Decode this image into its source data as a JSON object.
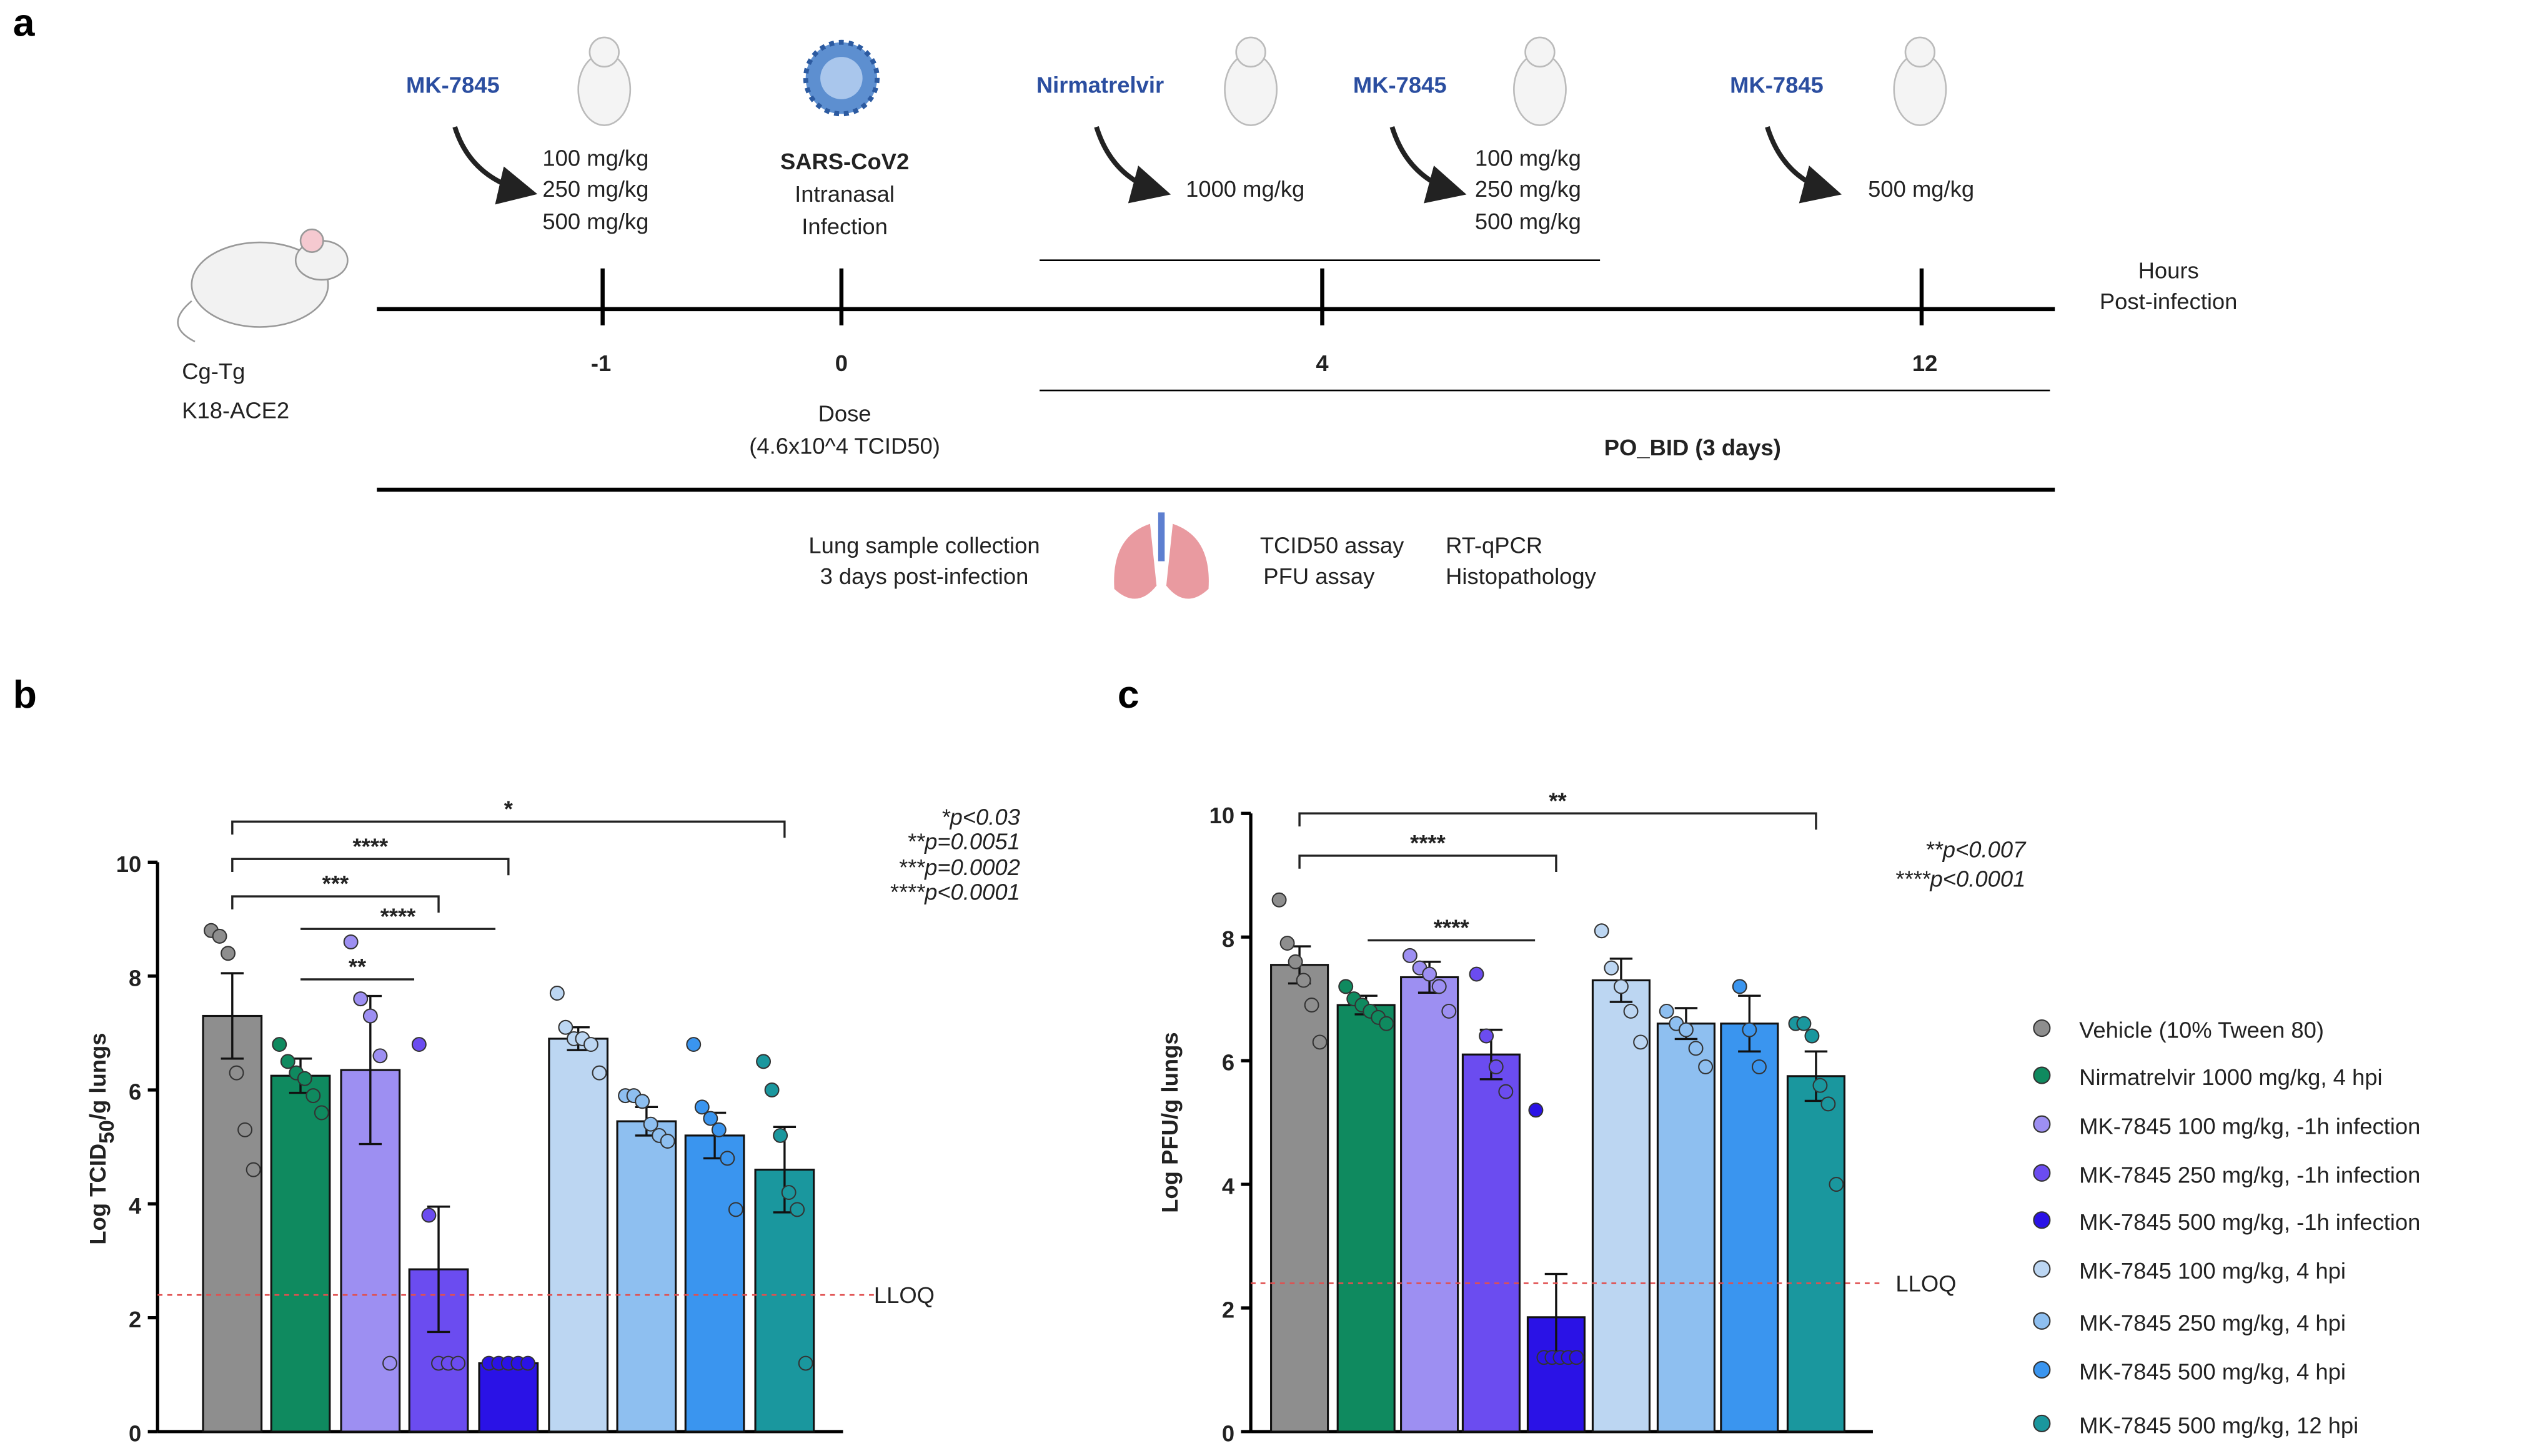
{
  "panels": {
    "a": "a",
    "b": "b",
    "c": "c"
  },
  "schematic": {
    "mouse_label": [
      "Cg-Tg",
      "K18-ACE2"
    ],
    "step1": {
      "drug": "MK-7845",
      "doses": [
        "100 mg/kg",
        "250 mg/kg",
        "500 mg/kg"
      ]
    },
    "infection": {
      "title": "SARS-CoV2",
      "lines": [
        "Intranasal",
        "Infection"
      ]
    },
    "step2": {
      "drug": "Nirmatrelvir",
      "dose": "1000 mg/kg"
    },
    "step3": {
      "drug": "MK-7845",
      "doses": [
        "100 mg/kg",
        "250 mg/kg",
        "500 mg/kg"
      ]
    },
    "step4": {
      "drug": "MK-7845",
      "dose": "500 mg/kg"
    },
    "axis_label": [
      "Hours",
      "Post-infection"
    ],
    "timepoints": [
      "-1",
      "0",
      "4",
      "12"
    ],
    "dose": [
      "Dose",
      "(4.6x10^4 TCID50)"
    ],
    "regimen": "PO_BID (3 days)",
    "collection": [
      "Lung sample collection",
      "3 days post-infection"
    ],
    "assays1": [
      "TCID50 assay",
      "PFU assay"
    ],
    "assays2": [
      "RT-qPCR",
      "Histopathology"
    ]
  },
  "legend": {
    "items": [
      {
        "name": "Vehicle (10% Tween 80)",
        "color": "#8e8e8e"
      },
      {
        "name": "Nirmatrelvir 1000 mg/kg, 4 hpi",
        "color": "#0f8a5f"
      },
      {
        "name": "MK-7845 100 mg/kg, -1h infection",
        "color": "#9d8ff2"
      },
      {
        "name": "MK-7845 250 mg/kg, -1h infection",
        "color": "#6b4cf0"
      },
      {
        "name": "MK-7845 500 mg/kg, -1h infection",
        "color": "#2a12e6"
      },
      {
        "name": "MK-7845 100 mg/kg, 4 hpi",
        "color": "#bcd6f2"
      },
      {
        "name": "MK-7845 250 mg/kg, 4 hpi",
        "color": "#8ebff0"
      },
      {
        "name": "MK-7845 500 mg/kg, 4 hpi",
        "color": "#3a95ef"
      },
      {
        "name": "MK-7845 500 mg/kg, 12 hpi",
        "color": "#1a979e"
      }
    ]
  },
  "chart_data": [
    {
      "type": "bar",
      "ylabel": {
        "main": "Log TCID",
        "sub": "50",
        "rest": "/g lungs"
      },
      "ylim": [
        0,
        10
      ],
      "yticks": [
        0,
        2,
        4,
        6,
        8,
        10
      ],
      "values": [
        7.3,
        6.25,
        6.35,
        2.85,
        1.2,
        6.9,
        5.45,
        5.2,
        4.6
      ],
      "errors": [
        0.75,
        0.3,
        1.3,
        1.1,
        0,
        0.2,
        0.25,
        0.4,
        0.75
      ],
      "points": [
        [
          8.8,
          8.7,
          8.4,
          6.3,
          5.3,
          4.6
        ],
        [
          6.8,
          6.5,
          6.3,
          6.2,
          5.9,
          5.6
        ],
        [
          8.6,
          7.6,
          7.3,
          6.6,
          1.2
        ],
        [
          6.8,
          3.8,
          1.2,
          1.2,
          1.2
        ],
        [
          1.2,
          1.2,
          1.2,
          1.2,
          1.2
        ],
        [
          7.7,
          7.1,
          6.9,
          6.9,
          6.8,
          6.3
        ],
        [
          5.9,
          5.9,
          5.8,
          5.4,
          5.2,
          5.1
        ],
        [
          6.8,
          5.7,
          5.5,
          5.3,
          4.8,
          3.9
        ],
        [
          6.5,
          6.0,
          5.2,
          4.2,
          3.9,
          1.2
        ]
      ],
      "lloq": 2.4,
      "lloq_label": "LLOQ",
      "annotations": [
        "*",
        "****",
        "***",
        "****",
        "**"
      ],
      "pvalues": [
        "*p<0.03",
        "**p=0.0051",
        "***p=0.0002",
        "****p<0.0001"
      ]
    },
    {
      "type": "bar",
      "ylabel": {
        "main": "Log PFU/g lungs"
      },
      "ylim": [
        0,
        10
      ],
      "yticks": [
        0,
        2,
        4,
        6,
        8,
        10
      ],
      "values": [
        7.55,
        6.9,
        7.35,
        6.1,
        1.85,
        7.3,
        6.6,
        6.6,
        5.75
      ],
      "errors": [
        0.3,
        0.15,
        0.25,
        0.4,
        0.7,
        0.35,
        0.25,
        0.45,
        0.4
      ],
      "points": [
        [
          8.6,
          7.9,
          7.6,
          7.3,
          6.9,
          6.3
        ],
        [
          7.2,
          7.0,
          6.9,
          6.8,
          6.7,
          6.6
        ],
        [
          7.7,
          7.5,
          7.4,
          7.2,
          6.8
        ],
        [
          7.4,
          6.4,
          5.9,
          5.5
        ],
        [
          5.2,
          1.2,
          1.2,
          1.2,
          1.2,
          1.2
        ],
        [
          8.1,
          7.5,
          7.2,
          6.8,
          6.3
        ],
        [
          6.8,
          6.6,
          6.5,
          6.2,
          5.9
        ],
        [
          7.2,
          6.5,
          5.9
        ],
        [
          6.6,
          6.6,
          6.4,
          5.6,
          5.3,
          4.0
        ]
      ],
      "lloq": 2.4,
      "lloq_label": "LLOQ",
      "annotations": [
        "**",
        "****",
        "****"
      ],
      "pvalues": [
        "**p<0.007",
        "****p<0.0001"
      ]
    }
  ]
}
